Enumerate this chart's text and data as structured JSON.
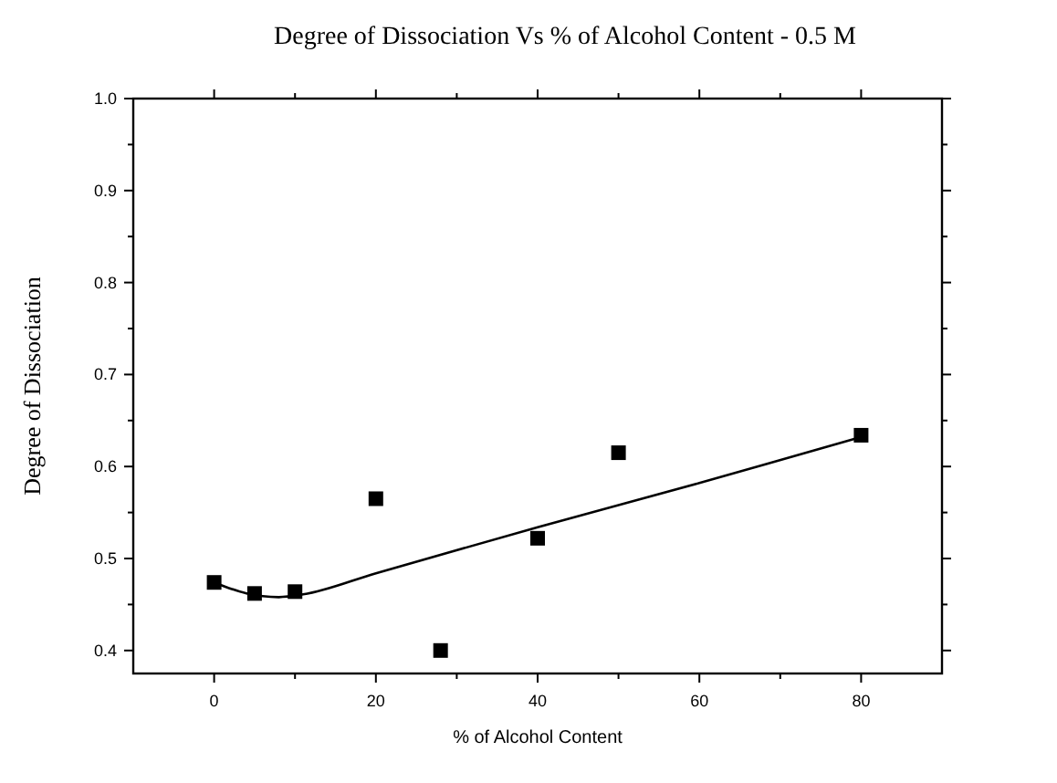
{
  "chart_data": {
    "type": "scatter",
    "title": "Degree of Dissociation Vs % of Alcohol Content - 0.5 M",
    "xlabel": "% of Alcohol Content",
    "ylabel": "Degree of Dissociation",
    "xlim": [
      -10,
      90
    ],
    "ylim": [
      0.375,
      1.0
    ],
    "xticks": [
      0,
      {
        "value": 10,
        "label": null
      },
      20,
      {
        "value": 30,
        "label": null
      },
      40,
      {
        "value": 50,
        "label": null
      },
      60,
      {
        "value": 70,
        "label": null
      },
      80
    ],
    "yticks": [
      0.4,
      {
        "value": 0.45,
        "label": null
      },
      0.5,
      {
        "value": 0.55,
        "label": null
      },
      0.6,
      {
        "value": 0.65,
        "label": null
      },
      0.7,
      {
        "value": 0.75,
        "label": null
      },
      0.8,
      {
        "value": 0.85,
        "label": null
      },
      0.9,
      {
        "value": 0.95,
        "label": null
      },
      {
        "value": 1.0,
        "label": "1.0"
      }
    ],
    "grid": false,
    "marker": "square",
    "series": [
      {
        "color": "#000000",
        "x": [
          0,
          5,
          10,
          20,
          28,
          40,
          50,
          80
        ],
        "values": [
          0.474,
          0.462,
          0.464,
          0.565,
          0.4,
          0.522,
          0.615,
          0.634
        ]
      },
      {
        "type": "line",
        "color": "#000000",
        "marker": "none",
        "line_style": "solid",
        "x": [
          0,
          4,
          8,
          11,
          20,
          40,
          60,
          80
        ],
        "values": [
          0.474,
          0.462,
          0.458,
          0.461,
          0.484,
          0.534,
          0.582,
          0.632
        ]
      }
    ]
  }
}
